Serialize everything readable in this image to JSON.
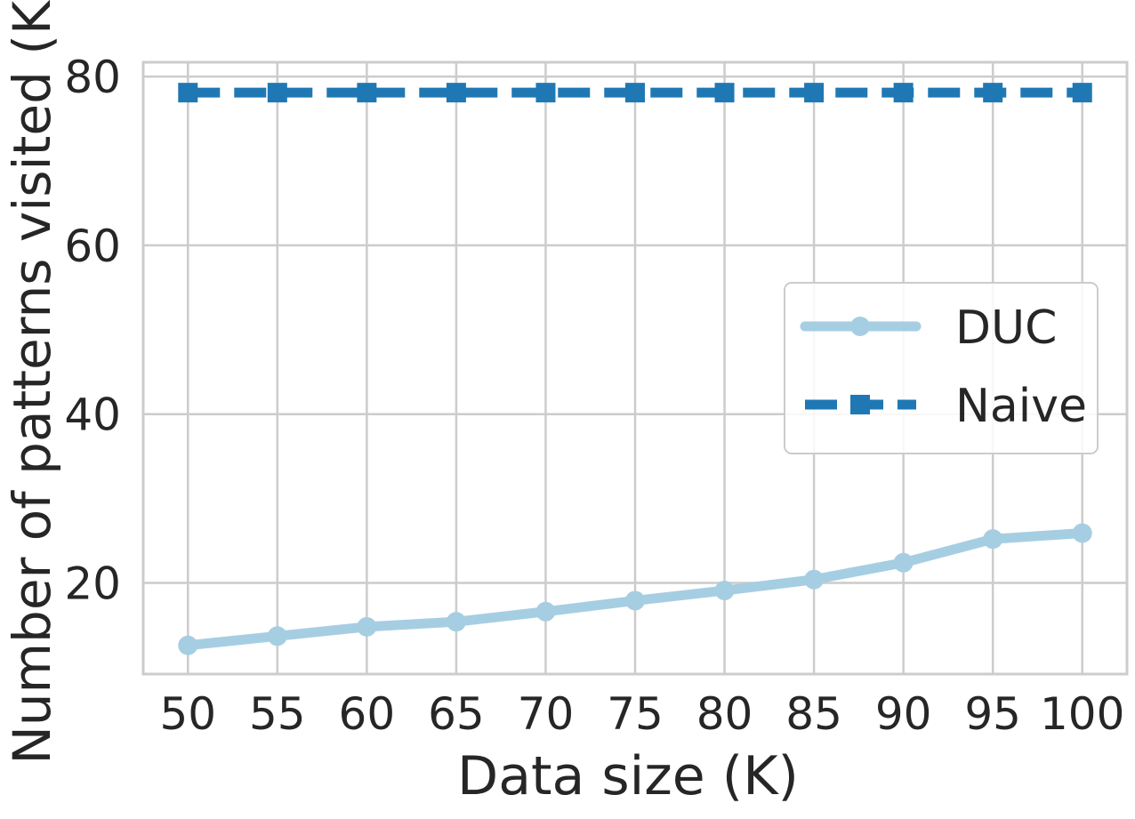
{
  "chart_data": {
    "type": "line",
    "xlabel": "Data size (K)",
    "ylabel": "Number of patterns visited (K)",
    "x": [
      50,
      55,
      60,
      65,
      70,
      75,
      80,
      85,
      90,
      95,
      100
    ],
    "x_tick_labels": [
      "50",
      "55",
      "60",
      "65",
      "70",
      "75",
      "80",
      "85",
      "90",
      "95",
      "100"
    ],
    "y_ticks": [
      20,
      40,
      60,
      80
    ],
    "y_tick_labels": [
      "20",
      "40",
      "60",
      "80"
    ],
    "xlim": [
      47.5,
      102.5
    ],
    "ylim": [
      9.2,
      81.7
    ],
    "grid": true,
    "legend_position": "center-right",
    "series": [
      {
        "name": "DUC",
        "values": [
          12.6,
          13.7,
          14.8,
          15.4,
          16.6,
          17.9,
          19.1,
          20.4,
          22.4,
          25.2,
          25.9
        ],
        "color": "#a6cee3",
        "marker": "circle",
        "line_style": "solid"
      },
      {
        "name": "Naive",
        "values": [
          78.1,
          78.1,
          78.1,
          78.1,
          78.1,
          78.1,
          78.1,
          78.1,
          78.1,
          78.1,
          78.1
        ],
        "color": "#1f78b4",
        "marker": "square",
        "line_style": "dashed"
      }
    ]
  }
}
